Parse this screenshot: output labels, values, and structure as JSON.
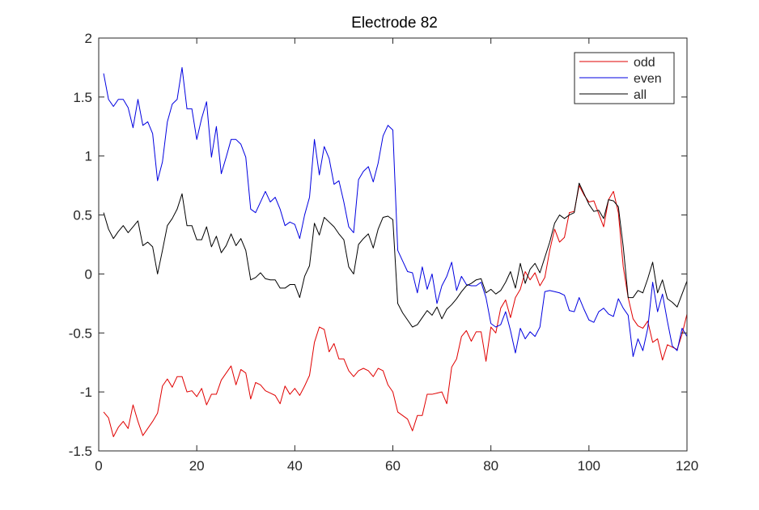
{
  "chart_data": {
    "type": "line",
    "title": "Electrode 82",
    "xlabel": "",
    "ylabel": "",
    "xlim": [
      0,
      120
    ],
    "ylim": [
      -1.5,
      2
    ],
    "xticks": [
      0,
      20,
      40,
      60,
      80,
      100,
      120
    ],
    "xtick_labels": [
      "0",
      "20",
      "40",
      "60",
      "80",
      "100",
      "120"
    ],
    "yticks": [
      -1.5,
      -1,
      -0.5,
      0,
      0.5,
      1,
      1.5,
      2
    ],
    "ytick_labels": [
      "-1.5",
      "-1",
      "-0.5",
      "0",
      "0.5",
      "1",
      "1.5",
      "2"
    ],
    "grid": false,
    "legend_position": "top-right",
    "x": [
      1,
      2,
      3,
      4,
      5,
      6,
      7,
      8,
      9,
      10,
      11,
      12,
      13,
      14,
      15,
      16,
      17,
      18,
      19,
      20,
      21,
      22,
      23,
      24,
      25,
      26,
      27,
      28,
      29,
      30,
      31,
      32,
      33,
      34,
      35,
      36,
      37,
      38,
      39,
      40,
      41,
      42,
      43,
      44,
      45,
      46,
      47,
      48,
      49,
      50,
      51,
      52,
      53,
      54,
      55,
      56,
      57,
      58,
      59,
      60,
      61,
      62,
      63,
      64,
      65,
      66,
      67,
      68,
      69,
      70,
      71,
      72,
      73,
      74,
      75,
      76,
      77,
      78,
      79,
      80,
      81,
      82,
      83,
      84,
      85,
      86,
      87,
      88,
      89,
      90,
      91,
      92,
      93,
      94,
      95,
      96,
      97,
      98,
      99,
      100,
      101,
      102,
      103,
      104,
      105,
      106,
      107,
      108,
      109,
      110,
      111,
      112,
      113,
      114,
      115,
      116,
      117,
      118,
      119,
      120
    ],
    "series": [
      {
        "name": "odd",
        "color": "#e00000",
        "values": [
          -1.17,
          -1.22,
          -1.38,
          -1.3,
          -1.25,
          -1.31,
          -1.11,
          -1.25,
          -1.37,
          -1.31,
          -1.25,
          -1.18,
          -0.95,
          -0.89,
          -0.96,
          -0.87,
          -0.87,
          -1,
          -0.99,
          -1.04,
          -0.97,
          -1.11,
          -1.02,
          -1.02,
          -0.9,
          -0.84,
          -0.78,
          -0.94,
          -0.81,
          -0.84,
          -1.06,
          -0.92,
          -0.94,
          -0.99,
          -1.01,
          -1.03,
          -1.1,
          -0.95,
          -1.02,
          -0.97,
          -1.03,
          -0.95,
          -0.86,
          -0.58,
          -0.45,
          -0.47,
          -0.66,
          -0.59,
          -0.72,
          -0.72,
          -0.82,
          -0.87,
          -0.82,
          -0.8,
          -0.82,
          -0.87,
          -0.8,
          -0.82,
          -0.94,
          -1,
          -1.17,
          -1.2,
          -1.23,
          -1.33,
          -1.2,
          -1.2,
          -1.02,
          -1.02,
          -1.01,
          -1,
          -1.1,
          -0.79,
          -0.72,
          -0.53,
          -0.48,
          -0.57,
          -0.49,
          -0.49,
          -0.74,
          -0.45,
          -0.5,
          -0.29,
          -0.22,
          -0.37,
          -0.2,
          -0.13,
          0.02,
          -0.05,
          0.01,
          -0.1,
          -0.03,
          0.2,
          0.38,
          0.27,
          0.31,
          0.52,
          0.53,
          0.75,
          0.67,
          0.61,
          0.62,
          0.51,
          0.4,
          0.63,
          0.7,
          0.52,
          0.06,
          -0.2,
          -0.38,
          -0.44,
          -0.46,
          -0.4,
          -0.58,
          -0.55,
          -0.73,
          -0.6,
          -0.62,
          -0.64,
          -0.51,
          -0.34
        ]
      },
      {
        "name": "even",
        "color": "#0000e0",
        "values": [
          1.7,
          1.48,
          1.42,
          1.48,
          1.48,
          1.41,
          1.24,
          1.48,
          1.26,
          1.29,
          1.19,
          0.79,
          0.95,
          1.29,
          1.44,
          1.48,
          1.75,
          1.4,
          1.4,
          1.14,
          1.32,
          1.46,
          0.99,
          1.25,
          0.85,
          0.99,
          1.14,
          1.14,
          1.1,
          0.99,
          0.55,
          0.52,
          0.61,
          0.7,
          0.61,
          0.65,
          0.55,
          0.41,
          0.44,
          0.42,
          0.3,
          0.5,
          0.65,
          1.14,
          0.84,
          1.08,
          0.98,
          0.76,
          0.79,
          0.61,
          0.4,
          0.35,
          0.8,
          0.87,
          0.91,
          0.78,
          0.94,
          1.17,
          1.26,
          1.22,
          0.2,
          0.11,
          0.02,
          0.01,
          -0.16,
          0.06,
          -0.13,
          0,
          -0.25,
          -0.1,
          -0.02,
          0.1,
          -0.14,
          -0.02,
          -0.09,
          -0.1,
          -0.1,
          -0.07,
          -0.2,
          -0.42,
          -0.45,
          -0.43,
          -0.32,
          -0.48,
          -0.67,
          -0.46,
          -0.55,
          -0.49,
          -0.53,
          -0.45,
          -0.15,
          -0.14,
          -0.15,
          -0.16,
          -0.18,
          -0.31,
          -0.32,
          -0.2,
          -0.3,
          -0.39,
          -0.41,
          -0.32,
          -0.29,
          -0.34,
          -0.36,
          -0.21,
          -0.29,
          -0.35,
          -0.7,
          -0.55,
          -0.65,
          -0.46,
          -0.07,
          -0.32,
          -0.17,
          -0.4,
          -0.61,
          -0.65,
          -0.46,
          -0.53
        ]
      },
      {
        "name": "all",
        "color": "#000000",
        "values": [
          0.52,
          0.38,
          0.3,
          0.36,
          0.41,
          0.35,
          0.4,
          0.45,
          0.24,
          0.27,
          0.23,
          0,
          0.2,
          0.41,
          0.47,
          0.55,
          0.68,
          0.41,
          0.41,
          0.29,
          0.29,
          0.4,
          0.23,
          0.32,
          0.18,
          0.24,
          0.34,
          0.24,
          0.3,
          0.2,
          -0.05,
          -0.03,
          0.01,
          -0.04,
          -0.05,
          -0.05,
          -0.12,
          -0.12,
          -0.09,
          -0.09,
          -0.2,
          -0.02,
          0.07,
          0.43,
          0.33,
          0.48,
          0.44,
          0.4,
          0.34,
          0.29,
          0.06,
          0,
          0.25,
          0.3,
          0.34,
          0.22,
          0.38,
          0.48,
          0.49,
          0.46,
          -0.25,
          -0.33,
          -0.39,
          -0.45,
          -0.43,
          -0.37,
          -0.31,
          -0.35,
          -0.28,
          -0.38,
          -0.3,
          -0.26,
          -0.21,
          -0.15,
          -0.1,
          -0.08,
          -0.05,
          -0.04,
          -0.16,
          -0.13,
          -0.17,
          -0.14,
          -0.07,
          0.02,
          -0.12,
          0.09,
          -0.08,
          0.04,
          0.09,
          0.01,
          0.14,
          0.27,
          0.43,
          0.5,
          0.47,
          0.5,
          0.52,
          0.77,
          0.68,
          0.59,
          0.53,
          0.54,
          0.47,
          0.63,
          0.62,
          0.57,
          0.23,
          -0.2,
          -0.2,
          -0.14,
          -0.16,
          -0.04,
          0.1,
          -0.16,
          -0.05,
          -0.21,
          -0.24,
          -0.28,
          -0.17,
          -0.06
        ]
      }
    ]
  }
}
